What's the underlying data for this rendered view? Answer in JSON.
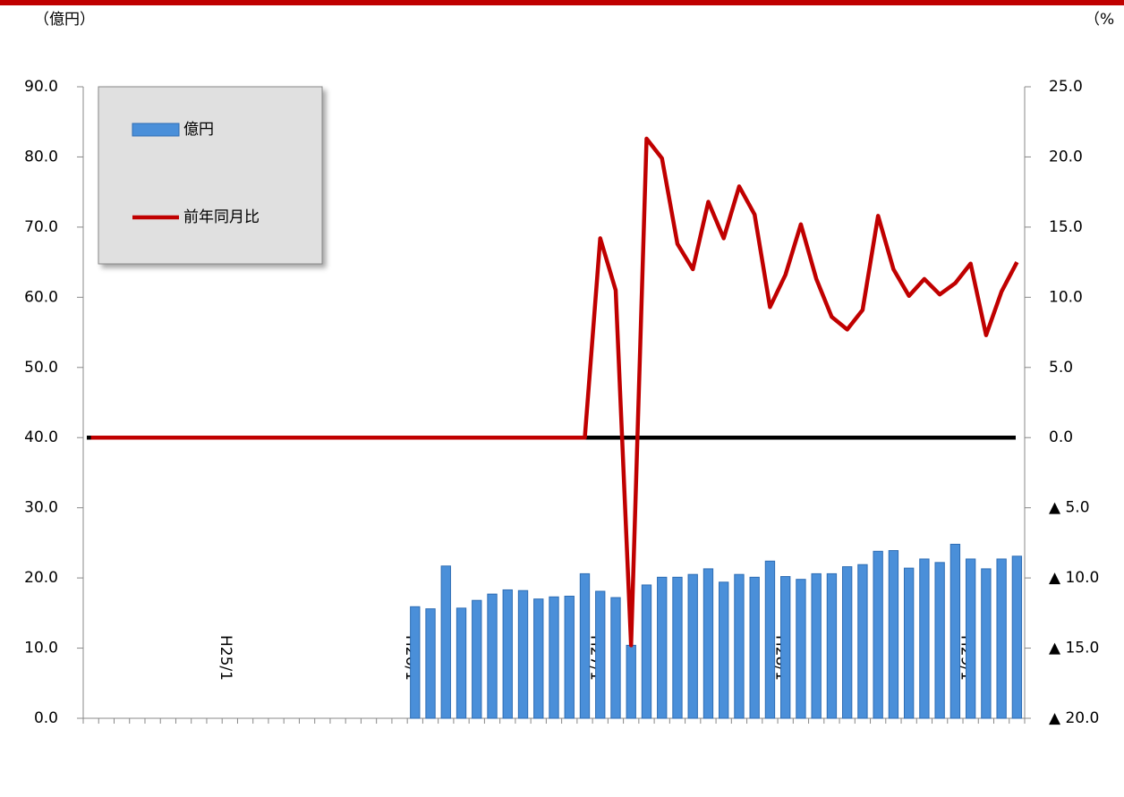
{
  "chart_data": {
    "type": "bar-line",
    "y_unit_label": "（億円）",
    "y2_unit_label": "（%",
    "categories": [
      null,
      null,
      null,
      null,
      null,
      null,
      null,
      null,
      null,
      "H25/1",
      null,
      null,
      null,
      null,
      null,
      null,
      null,
      null,
      null,
      null,
      null,
      "H26/1",
      null,
      null,
      null,
      null,
      null,
      null,
      null,
      null,
      null,
      null,
      null,
      "H27/1",
      null,
      null,
      null,
      null,
      null,
      null,
      null,
      null,
      null,
      null,
      null,
      "H28/1",
      null,
      null,
      null,
      null,
      null,
      null,
      null,
      null,
      null,
      null,
      null,
      "H29/1",
      null,
      null,
      null
    ],
    "series": [
      {
        "name": "億円",
        "type": "bar",
        "color": "#4a8fd9",
        "edge_color": "#2e6db4",
        "axis": "y",
        "values": [
          null,
          null,
          null,
          null,
          null,
          null,
          null,
          null,
          null,
          null,
          null,
          null,
          null,
          null,
          null,
          null,
          null,
          null,
          null,
          null,
          null,
          15.9,
          15.6,
          21.7,
          15.7,
          16.8,
          17.7,
          18.3,
          18.2,
          17.0,
          17.3,
          17.4,
          20.6,
          18.1,
          17.2,
          10.4,
          19.0,
          20.1,
          20.1,
          20.5,
          21.3,
          19.4,
          20.5,
          20.1,
          22.4,
          20.2,
          19.8,
          20.6,
          20.6,
          21.6,
          21.9,
          23.8,
          23.9,
          21.4,
          22.7,
          22.2,
          24.8,
          22.7,
          21.3,
          22.7,
          23.1
        ]
      },
      {
        "name": "前年同月比",
        "type": "line",
        "color": "#c00000",
        "axis": "y2",
        "values": [
          0,
          0,
          0,
          0,
          0,
          0,
          0,
          0,
          0,
          0,
          0,
          0,
          0,
          0,
          0,
          0,
          0,
          0,
          0,
          0,
          0,
          0,
          0,
          0,
          0,
          0,
          0,
          0,
          0,
          0,
          0,
          0,
          0,
          14.2,
          10.5,
          -14.8,
          21.3,
          19.9,
          13.8,
          12.0,
          16.8,
          14.2,
          17.9,
          15.9,
          9.3,
          11.6,
          15.2,
          11.3,
          8.6,
          7.7,
          9.1,
          15.8,
          12.0,
          10.1,
          11.3,
          10.2,
          11.0,
          12.4,
          7.3,
          10.4,
          12.5
        ]
      }
    ],
    "ylim": [
      0,
      90
    ],
    "yticks": [
      {
        "value": 0,
        "label": "0.0"
      },
      {
        "value": 10,
        "label": "10.0"
      },
      {
        "value": 20,
        "label": "20.0"
      },
      {
        "value": 30,
        "label": "30.0"
      },
      {
        "value": 40,
        "label": "40.0"
      },
      {
        "value": 50,
        "label": "50.0"
      },
      {
        "value": 60,
        "label": "60.0"
      },
      {
        "value": 70,
        "label": "70.0"
      },
      {
        "value": 80,
        "label": "80.0"
      },
      {
        "value": 90,
        "label": "90.0"
      }
    ],
    "y2lim": [
      -20,
      25
    ],
    "y2ticks": [
      {
        "value": -20,
        "label": "▲ 20.0"
      },
      {
        "value": -15,
        "label": "▲ 15.0"
      },
      {
        "value": -10,
        "label": "▲ 10.0"
      },
      {
        "value": -5,
        "label": "▲ 5.0"
      },
      {
        "value": 0,
        "label": "0.0"
      },
      {
        "value": 5,
        "label": "5.0"
      },
      {
        "value": 10,
        "label": "10.0"
      },
      {
        "value": 15,
        "label": "15.0"
      },
      {
        "value": 20,
        "label": "20.0"
      },
      {
        "value": 25,
        "label": "25.0"
      }
    ],
    "zero_line_color": "#000000",
    "legend": "top-left"
  }
}
